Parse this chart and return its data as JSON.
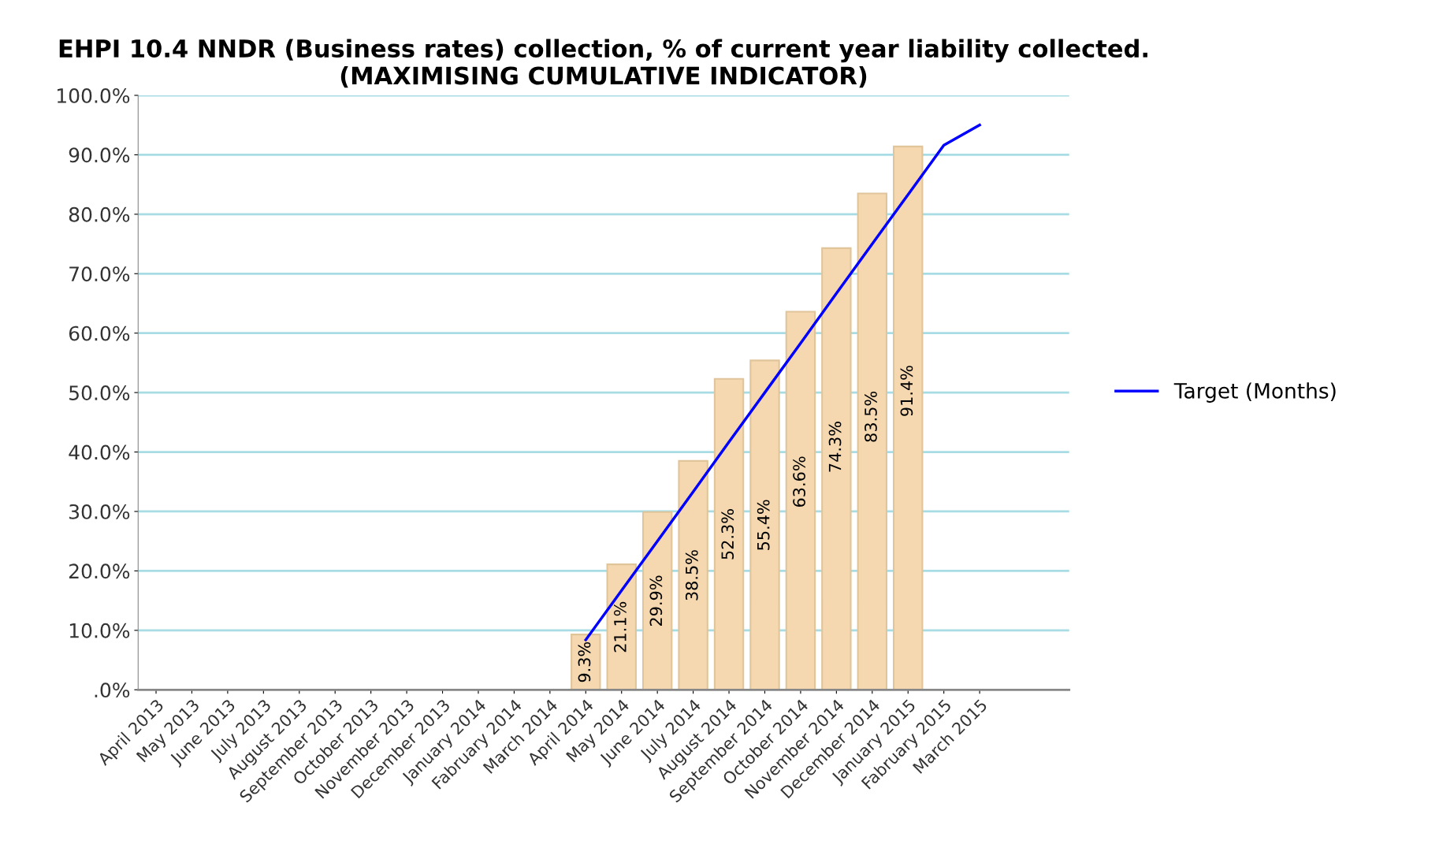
{
  "chart_data": {
    "type": "bar",
    "title": "EHPI 10.4 NNDR (Business rates) collection, % of current year liability collected.\n(MAXIMISING CUMULATIVE INDICATOR)",
    "categories": [
      "April 2013",
      "May 2013",
      "June 2013",
      "July 2013",
      "August 2013",
      "September 2013",
      "October 2013",
      "November 2013",
      "December 2013",
      "January 2014",
      "Fabruary 2014",
      "March 2014",
      "April 2014",
      "May 2014",
      "June 2014",
      "July 2014",
      "August 2014",
      "September 2014",
      "October 2014",
      "November 2014",
      "December 2014",
      "January 2015",
      "Fabruary 2015",
      "March 2015"
    ],
    "series": [
      {
        "color": "#f5d8b0",
        "values": [
          null,
          null,
          null,
          null,
          null,
          null,
          null,
          null,
          null,
          null,
          null,
          null,
          9.3,
          21.1,
          29.9,
          38.5,
          52.3,
          55.4,
          63.6,
          74.3,
          83.5,
          91.4,
          null,
          null
        ],
        "value_labels": [
          null,
          null,
          null,
          null,
          null,
          null,
          null,
          null,
          null,
          null,
          null,
          null,
          "9.3%",
          "21.1%",
          "29.9%",
          "38.5%",
          "52.3%",
          "55.4%",
          "63.6%",
          "74.3%",
          "83.5%",
          "91.4%",
          null,
          null
        ]
      },
      {
        "type": "line",
        "name": "Target (Months)",
        "color": "#0000ff",
        "values": [
          null,
          null,
          null,
          null,
          null,
          null,
          null,
          null,
          null,
          null,
          null,
          null,
          8.4,
          16.7,
          25.0,
          33.3,
          41.7,
          50.0,
          58.3,
          66.7,
          75.0,
          83.3,
          91.6,
          95.0
        ]
      }
    ],
    "ylim": [
      0,
      100
    ],
    "yticks": [
      {
        "value": 0,
        "label": ".0%"
      },
      {
        "value": 10,
        "label": "10.0%"
      },
      {
        "value": 20,
        "label": "20.0%"
      },
      {
        "value": 30,
        "label": "30.0%"
      },
      {
        "value": 40,
        "label": "40.0%"
      },
      {
        "value": 50,
        "label": "50.0%"
      },
      {
        "value": 60,
        "label": "60.0%"
      },
      {
        "value": 70,
        "label": "70.0%"
      },
      {
        "value": 80,
        "label": "80.0%"
      },
      {
        "value": 90,
        "label": "90.0%"
      },
      {
        "value": 100,
        "label": "100.0%"
      }
    ],
    "grid": "y",
    "legend": "right",
    "marker": "none",
    "line_style": "solid"
  }
}
